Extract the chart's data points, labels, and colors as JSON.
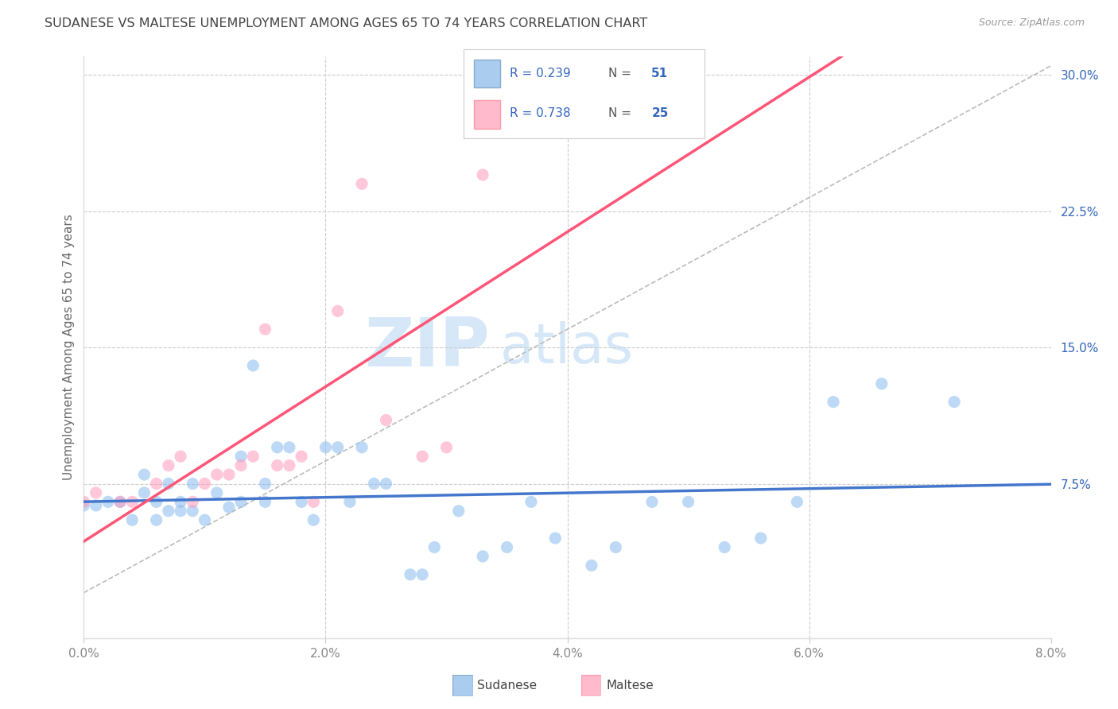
{
  "title": "SUDANESE VS MALTESE UNEMPLOYMENT AMONG AGES 65 TO 74 YEARS CORRELATION CHART",
  "source": "Source: ZipAtlas.com",
  "ylabel": "Unemployment Among Ages 65 to 74 years",
  "xlim": [
    0.0,
    0.08
  ],
  "ylim": [
    -0.01,
    0.31
  ],
  "xticks": [
    0.0,
    0.02,
    0.04,
    0.06,
    0.08
  ],
  "yticks_right": [
    0.075,
    0.15,
    0.225,
    0.3
  ],
  "ytick_labels_right": [
    "7.5%",
    "15.0%",
    "22.5%",
    "30.0%"
  ],
  "xtick_labels": [
    "0.0%",
    "2.0%",
    "4.0%",
    "6.0%",
    "8.0%"
  ],
  "R_sudanese": 0.239,
  "N_sudanese": 51,
  "R_maltese": 0.738,
  "N_maltese": 25,
  "sudanese_color": "#88BBEE",
  "maltese_color": "#FF99BB",
  "sudanese_line_color": "#4477CC",
  "maltese_line_color": "#FF5577",
  "background_color": "#FFFFFF",
  "legend_blue_sq_face": "#AACCEE",
  "legend_blue_sq_edge": "#88AACC",
  "legend_pink_sq_face": "#FFBBCC",
  "legend_pink_sq_edge": "#FF99AA",
  "legend_text_color": "#3366BB",
  "sudanese_x": [
    0.0,
    0.001,
    0.002,
    0.003,
    0.004,
    0.005,
    0.005,
    0.006,
    0.006,
    0.007,
    0.007,
    0.008,
    0.008,
    0.009,
    0.009,
    0.01,
    0.011,
    0.012,
    0.013,
    0.013,
    0.014,
    0.015,
    0.015,
    0.016,
    0.017,
    0.018,
    0.019,
    0.02,
    0.021,
    0.022,
    0.023,
    0.024,
    0.025,
    0.027,
    0.028,
    0.029,
    0.031,
    0.033,
    0.035,
    0.037,
    0.039,
    0.042,
    0.044,
    0.047,
    0.05,
    0.053,
    0.056,
    0.059,
    0.062,
    0.066,
    0.072
  ],
  "sudanese_y": [
    0.063,
    0.063,
    0.065,
    0.065,
    0.055,
    0.08,
    0.07,
    0.065,
    0.055,
    0.075,
    0.06,
    0.06,
    0.065,
    0.06,
    0.075,
    0.055,
    0.07,
    0.062,
    0.065,
    0.09,
    0.14,
    0.065,
    0.075,
    0.095,
    0.095,
    0.065,
    0.055,
    0.095,
    0.095,
    0.065,
    0.095,
    0.075,
    0.075,
    0.025,
    0.025,
    0.04,
    0.06,
    0.035,
    0.04,
    0.065,
    0.045,
    0.03,
    0.04,
    0.065,
    0.065,
    0.04,
    0.045,
    0.065,
    0.12,
    0.13,
    0.12
  ],
  "maltese_x": [
    0.0,
    0.001,
    0.003,
    0.004,
    0.006,
    0.007,
    0.008,
    0.009,
    0.01,
    0.011,
    0.012,
    0.013,
    0.014,
    0.015,
    0.016,
    0.017,
    0.018,
    0.019,
    0.021,
    0.023,
    0.025,
    0.028,
    0.03,
    0.033,
    0.036
  ],
  "maltese_y": [
    0.065,
    0.07,
    0.065,
    0.065,
    0.075,
    0.085,
    0.09,
    0.065,
    0.075,
    0.08,
    0.08,
    0.085,
    0.09,
    0.16,
    0.085,
    0.085,
    0.09,
    0.065,
    0.17,
    0.24,
    0.11,
    0.09,
    0.095,
    0.245,
    0.27
  ],
  "ref_line_x": [
    0.0,
    0.08
  ],
  "ref_line_y": [
    0.015,
    0.305
  ]
}
